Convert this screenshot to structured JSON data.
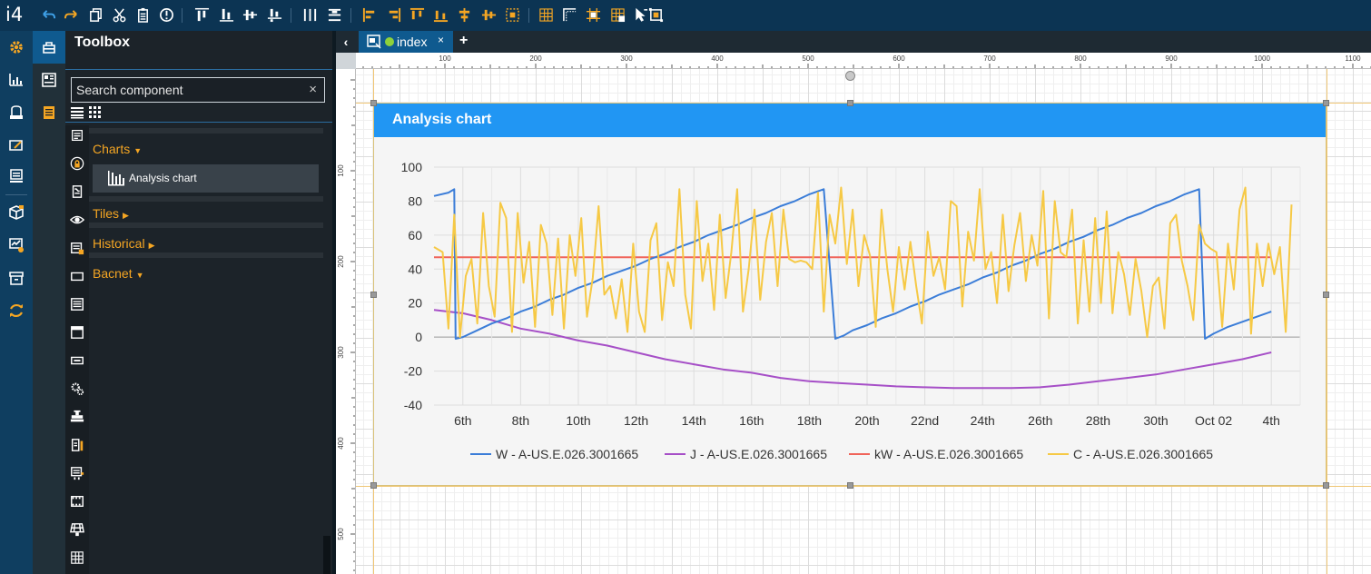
{
  "app": {
    "logo": "i4"
  },
  "colors": {
    "topbar": "#0c3453",
    "accent": "#2196f3",
    "category": "#f5a623"
  },
  "toolbar": {
    "icons": [
      "undo-icon",
      "redo-icon",
      "copy-icon",
      "cut-icon",
      "paste-icon",
      "info-icon",
      "align-top-icon",
      "align-bottom-icon",
      "align-vcenter-icon",
      "align-baseline-icon",
      "distribute-h-icon",
      "distribute-v-icon",
      "align-left-icon",
      "align-right-icon",
      "align-center-top-icon",
      "align-center-bottom-icon",
      "center-h-icon",
      "center-v-icon",
      "center-both-icon",
      "grid-icon",
      "corner-icon",
      "snap-icon",
      "grid-snap-icon",
      "pointer-icon",
      "frame-icon"
    ]
  },
  "rail": {
    "icons": [
      "settings-gear-icon",
      "dashboard-icon",
      "device-icon",
      "edit-screen-icon",
      "report-icon",
      "deploy-icon",
      "monitor-settings-icon",
      "archive-icon",
      "refresh-icon"
    ]
  },
  "panel_tabs": [
    "toolbox-icon",
    "layout-icon",
    "pages-icon"
  ],
  "toolbox": {
    "title": "Toolbox",
    "search_placeholder": "Search component",
    "clear": "×",
    "categories": [
      {
        "label": "Charts",
        "expanded": true,
        "items": [
          {
            "label": "Analysis chart",
            "icon": "bar-chart-icon"
          }
        ]
      },
      {
        "label": "Tiles",
        "expanded": false
      },
      {
        "label": "Historical",
        "expanded": false
      },
      {
        "label": "Bacnet",
        "expanded": true
      }
    ]
  },
  "component_icons": [
    "text-icon",
    "lock-icon",
    "script-icon",
    "eye-icon",
    "badge-icon",
    "rectangle-icon",
    "list-icon",
    "window-icon",
    "button-icon",
    "gears-icon",
    "valve-icon",
    "battery-icon",
    "chiller-icon",
    "film-icon",
    "solar-icon",
    "grid-table-icon"
  ],
  "editor": {
    "back": "‹",
    "tab": {
      "label": "index",
      "close": "×",
      "status": "online"
    },
    "add_tab": "+",
    "ruler_h": [
      "100",
      "200",
      "300",
      "400",
      "500",
      "600",
      "700",
      "800",
      "900",
      "1000",
      "1100"
    ],
    "ruler_v": [
      "100",
      "200",
      "300",
      "400",
      "500"
    ]
  },
  "widget": {
    "title": "Analysis chart"
  },
  "chart_data": {
    "type": "line",
    "title": "",
    "x_tick_labels": [
      "6th",
      "8th",
      "10th",
      "12th",
      "14th",
      "16th",
      "18th",
      "20th",
      "22nd",
      "24th",
      "26th",
      "28th",
      "30th",
      "Oct 02",
      "4th"
    ],
    "ylim": [
      -40,
      100
    ],
    "y_ticks": [
      100,
      80,
      60,
      40,
      20,
      0,
      -20,
      -40
    ],
    "grid": true,
    "legend_position": "bottom",
    "x_start_index": 0,
    "x_end_index": 30,
    "series": [
      {
        "name": "W - A-US.E.026.3001665",
        "color": "#3b7dd8",
        "points": [
          [
            0,
            83
          ],
          [
            0.5,
            85
          ],
          [
            0.7,
            87
          ],
          [
            0.75,
            -1
          ],
          [
            1.0,
            0
          ],
          [
            1.5,
            4
          ],
          [
            2.0,
            8
          ],
          [
            2.5,
            11
          ],
          [
            3.0,
            15
          ],
          [
            3.5,
            18
          ],
          [
            4.0,
            22
          ],
          [
            4.5,
            25
          ],
          [
            5.0,
            29
          ],
          [
            5.5,
            32
          ],
          [
            6.0,
            36
          ],
          [
            6.5,
            39
          ],
          [
            7.0,
            42
          ],
          [
            7.5,
            46
          ],
          [
            8.0,
            49
          ],
          [
            8.5,
            53
          ],
          [
            9.0,
            56
          ],
          [
            9.5,
            60
          ],
          [
            10.0,
            63
          ],
          [
            10.5,
            66
          ],
          [
            11.0,
            70
          ],
          [
            11.5,
            73
          ],
          [
            12.0,
            77
          ],
          [
            12.5,
            80
          ],
          [
            13.0,
            84
          ],
          [
            13.5,
            87
          ],
          [
            13.9,
            -1
          ],
          [
            14.2,
            1
          ],
          [
            14.5,
            4
          ],
          [
            15.0,
            7
          ],
          [
            15.5,
            11
          ],
          [
            16.0,
            14
          ],
          [
            16.5,
            18
          ],
          [
            17.0,
            21
          ],
          [
            17.5,
            25
          ],
          [
            18.0,
            28
          ],
          [
            18.5,
            31
          ],
          [
            19.0,
            35
          ],
          [
            19.5,
            38
          ],
          [
            20.0,
            42
          ],
          [
            20.5,
            45
          ],
          [
            21.0,
            49
          ],
          [
            21.5,
            52
          ],
          [
            22.0,
            56
          ],
          [
            22.5,
            59
          ],
          [
            23.0,
            63
          ],
          [
            23.5,
            66
          ],
          [
            24.0,
            70
          ],
          [
            24.5,
            73
          ],
          [
            25.0,
            77
          ],
          [
            25.5,
            80
          ],
          [
            26.0,
            84
          ],
          [
            26.5,
            87
          ],
          [
            26.7,
            -1
          ],
          [
            27.0,
            2
          ],
          [
            27.5,
            6
          ],
          [
            28.0,
            9
          ],
          [
            28.5,
            12
          ],
          [
            29.0,
            15
          ]
        ]
      },
      {
        "name": "J - A-US.E.026.3001665",
        "color": "#a64fc7",
        "points": [
          [
            0,
            16
          ],
          [
            1,
            14
          ],
          [
            2,
            10
          ],
          [
            3,
            5
          ],
          [
            4,
            2
          ],
          [
            5,
            -2
          ],
          [
            6,
            -5
          ],
          [
            7,
            -9
          ],
          [
            8,
            -13
          ],
          [
            9,
            -16
          ],
          [
            10,
            -19
          ],
          [
            11,
            -21
          ],
          [
            12,
            -24
          ],
          [
            13,
            -26
          ],
          [
            14,
            -27
          ],
          [
            15,
            -28
          ],
          [
            16,
            -29
          ],
          [
            17,
            -29.5
          ],
          [
            18,
            -30
          ],
          [
            19,
            -30
          ],
          [
            20,
            -30
          ],
          [
            21,
            -29.5
          ],
          [
            22,
            -28
          ],
          [
            23,
            -26
          ],
          [
            24,
            -24
          ],
          [
            25,
            -22
          ],
          [
            26,
            -19
          ],
          [
            27,
            -16
          ],
          [
            28,
            -13
          ],
          [
            29,
            -9
          ]
        ]
      },
      {
        "name": "kW - A-US.E.026.3001665",
        "color": "#f0645a",
        "points": [
          [
            0,
            47
          ],
          [
            29,
            47
          ]
        ]
      },
      {
        "name": "C - A-US.E.026.3001665",
        "color": "#f6c945",
        "points": [
          [
            0,
            53
          ],
          [
            0.3,
            50
          ],
          [
            0.5,
            5
          ],
          [
            0.7,
            72
          ],
          [
            0.9,
            0
          ],
          [
            1.1,
            36
          ],
          [
            1.3,
            46
          ],
          [
            1.5,
            8
          ],
          [
            1.7,
            73
          ],
          [
            1.9,
            30
          ],
          [
            2.1,
            12
          ],
          [
            2.3,
            79
          ],
          [
            2.5,
            70
          ],
          [
            2.7,
            3
          ],
          [
            2.9,
            73
          ],
          [
            3.1,
            32
          ],
          [
            3.3,
            56
          ],
          [
            3.5,
            6
          ],
          [
            3.7,
            66
          ],
          [
            3.9,
            55
          ],
          [
            4.1,
            13
          ],
          [
            4.3,
            58
          ],
          [
            4.5,
            5
          ],
          [
            4.7,
            60
          ],
          [
            4.9,
            36
          ],
          [
            5.1,
            70
          ],
          [
            5.3,
            12
          ],
          [
            5.5,
            35
          ],
          [
            5.7,
            77
          ],
          [
            5.9,
            25
          ],
          [
            6.1,
            30
          ],
          [
            6.3,
            11
          ],
          [
            6.5,
            34
          ],
          [
            6.7,
            3
          ],
          [
            6.9,
            55
          ],
          [
            7.1,
            15
          ],
          [
            7.3,
            3
          ],
          [
            7.5,
            57
          ],
          [
            7.7,
            67
          ],
          [
            7.9,
            10
          ],
          [
            8.1,
            44
          ],
          [
            8.3,
            30
          ],
          [
            8.5,
            87
          ],
          [
            8.7,
            25
          ],
          [
            8.9,
            5
          ],
          [
            9.1,
            80
          ],
          [
            9.3,
            33
          ],
          [
            9.5,
            55
          ],
          [
            9.7,
            16
          ],
          [
            9.9,
            72
          ],
          [
            10.1,
            23
          ],
          [
            10.3,
            50
          ],
          [
            10.5,
            87
          ],
          [
            10.7,
            15
          ],
          [
            10.9,
            40
          ],
          [
            11.1,
            75
          ],
          [
            11.3,
            22
          ],
          [
            11.5,
            56
          ],
          [
            11.7,
            73
          ],
          [
            11.9,
            30
          ],
          [
            12.1,
            75
          ],
          [
            12.3,
            46
          ],
          [
            12.5,
            44
          ],
          [
            12.7,
            45
          ],
          [
            12.9,
            44
          ],
          [
            13.1,
            40
          ],
          [
            13.3,
            85
          ],
          [
            13.5,
            15
          ],
          [
            13.7,
            72
          ],
          [
            13.9,
            55
          ],
          [
            14.1,
            88
          ],
          [
            14.3,
            43
          ],
          [
            14.5,
            75
          ],
          [
            14.7,
            30
          ],
          [
            14.9,
            60
          ],
          [
            15.1,
            48
          ],
          [
            15.3,
            6
          ],
          [
            15.5,
            75
          ],
          [
            15.7,
            40
          ],
          [
            15.9,
            15
          ],
          [
            16.1,
            53
          ],
          [
            16.3,
            28
          ],
          [
            16.5,
            56
          ],
          [
            16.7,
            30
          ],
          [
            16.9,
            8
          ],
          [
            17.1,
            62
          ],
          [
            17.3,
            36
          ],
          [
            17.5,
            47
          ],
          [
            17.7,
            28
          ],
          [
            17.9,
            80
          ],
          [
            18.1,
            77
          ],
          [
            18.3,
            18
          ],
          [
            18.5,
            62
          ],
          [
            18.7,
            45
          ],
          [
            18.9,
            87
          ],
          [
            19.1,
            40
          ],
          [
            19.3,
            50
          ],
          [
            19.5,
            20
          ],
          [
            19.7,
            72
          ],
          [
            19.9,
            27
          ],
          [
            20.1,
            54
          ],
          [
            20.3,
            73
          ],
          [
            20.5,
            33
          ],
          [
            20.7,
            60
          ],
          [
            20.9,
            42
          ],
          [
            21.1,
            86
          ],
          [
            21.3,
            11
          ],
          [
            21.5,
            80
          ],
          [
            21.7,
            50
          ],
          [
            21.9,
            47
          ],
          [
            22.1,
            75
          ],
          [
            22.3,
            8
          ],
          [
            22.5,
            57
          ],
          [
            22.7,
            15
          ],
          [
            22.9,
            70
          ],
          [
            23.1,
            20
          ],
          [
            23.3,
            74
          ],
          [
            23.5,
            14
          ],
          [
            23.7,
            50
          ],
          [
            23.9,
            37
          ],
          [
            24.1,
            13
          ],
          [
            24.3,
            46
          ],
          [
            24.5,
            27
          ],
          [
            24.7,
            0
          ],
          [
            24.9,
            30
          ],
          [
            25.1,
            35
          ],
          [
            25.3,
            5
          ],
          [
            25.5,
            67
          ],
          [
            25.7,
            72
          ],
          [
            25.9,
            45
          ],
          [
            26.1,
            30
          ],
          [
            26.3,
            10
          ],
          [
            26.5,
            66
          ],
          [
            26.7,
            55
          ],
          [
            26.9,
            52
          ],
          [
            27.1,
            50
          ],
          [
            27.3,
            6
          ],
          [
            27.5,
            55
          ],
          [
            27.7,
            28
          ],
          [
            27.9,
            75
          ],
          [
            28.1,
            88
          ],
          [
            28.3,
            2
          ],
          [
            28.5,
            55
          ],
          [
            28.7,
            30
          ],
          [
            28.9,
            55
          ],
          [
            29.1,
            37
          ],
          [
            29.3,
            53
          ],
          [
            29.5,
            3
          ],
          [
            29.7,
            78
          ]
        ]
      }
    ]
  }
}
